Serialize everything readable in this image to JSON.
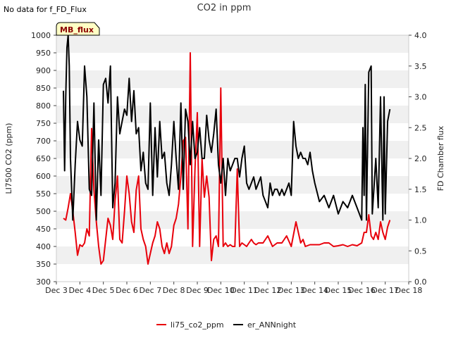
{
  "note": "No data for f_FD_Flux",
  "badge": "MB_flux",
  "chart_data": {
    "type": "line",
    "title": "CO2 in ppm",
    "ylabel": "LI7500 CO2 (ppm)",
    "y2label": "FD Chamber flux",
    "xlabel": "",
    "xlim": [
      3.0,
      18.0
    ],
    "ylim": [
      300,
      1000
    ],
    "y2lim": [
      0.0,
      4.0
    ],
    "x_ticks": [
      3,
      4,
      5,
      6,
      7,
      8,
      9,
      10,
      11,
      12,
      13,
      14,
      15,
      16,
      17,
      18
    ],
    "x_tick_labels": [
      "Dec 3",
      "Dec 4",
      "Dec 5",
      "Dec 6",
      "Dec 7",
      "Dec 8",
      "Dec 9",
      "Dec 10",
      "Dec 11",
      "Dec 12",
      "Dec 13",
      "Dec 14",
      "Dec 15",
      "Dec 16",
      "Dec 17",
      "Dec 18"
    ],
    "y_ticks": [
      300,
      350,
      400,
      450,
      500,
      550,
      600,
      650,
      700,
      750,
      800,
      850,
      900,
      950,
      1000
    ],
    "y2_ticks": [
      0.0,
      0.5,
      1.0,
      1.5,
      2.0,
      2.5,
      3.0,
      3.5,
      4.0
    ],
    "y2_tick_labels": [
      "0.0",
      "0.5",
      "1.0",
      "1.5",
      "2.0",
      "2.5",
      "3.0",
      "3.5",
      "4.0"
    ],
    "grid": "horizontal bands",
    "legend_position": "bottom-center",
    "series": [
      {
        "name": "li75_co2_ppm",
        "axis": "left",
        "color": "#e8000b",
        "x": [
          3.3,
          3.4,
          3.5,
          3.6,
          3.7,
          3.8,
          3.9,
          4.0,
          4.1,
          4.2,
          4.3,
          4.4,
          4.5,
          4.6,
          4.7,
          4.8,
          4.9,
          5.0,
          5.1,
          5.2,
          5.3,
          5.4,
          5.5,
          5.6,
          5.7,
          5.8,
          5.9,
          6.0,
          6.1,
          6.2,
          6.3,
          6.4,
          6.5,
          6.6,
          6.7,
          6.8,
          6.9,
          7.0,
          7.1,
          7.2,
          7.3,
          7.4,
          7.5,
          7.6,
          7.7,
          7.8,
          7.9,
          8.0,
          8.1,
          8.2,
          8.3,
          8.4,
          8.5,
          8.6,
          8.7,
          8.8,
          8.9,
          9.0,
          9.1,
          9.2,
          9.3,
          9.4,
          9.5,
          9.6,
          9.7,
          9.8,
          9.9,
          10.0,
          10.1,
          10.2,
          10.3,
          10.4,
          10.5,
          10.6,
          10.7,
          10.8,
          10.9,
          11.0,
          11.1,
          11.2,
          11.3,
          11.4,
          11.5,
          11.6,
          11.8,
          12.0,
          12.2,
          12.4,
          12.6,
          12.8,
          13.0,
          13.2,
          13.4,
          13.5,
          13.6,
          13.8,
          14.0,
          14.2,
          14.4,
          14.6,
          14.8,
          15.0,
          15.2,
          15.4,
          15.6,
          15.8,
          16.0,
          16.1,
          16.2,
          16.3,
          16.4,
          16.5,
          16.6,
          16.7,
          16.8,
          16.9,
          17.0,
          17.1,
          17.2
        ],
        "values": [
          480,
          475,
          510,
          550,
          500,
          440,
          375,
          405,
          400,
          410,
          450,
          430,
          735,
          560,
          470,
          400,
          350,
          360,
          420,
          480,
          460,
          420,
          530,
          600,
          420,
          410,
          500,
          600,
          550,
          470,
          440,
          560,
          600,
          450,
          420,
          400,
          350,
          380,
          410,
          430,
          470,
          450,
          400,
          380,
          410,
          380,
          400,
          460,
          480,
          520,
          600,
          700,
          710,
          450,
          950,
          400,
          620,
          780,
          400,
          650,
          540,
          600,
          540,
          360,
          420,
          430,
          400,
          850,
          400,
          410,
          400,
          405,
          400,
          400,
          620,
          400,
          410,
          405,
          400,
          410,
          420,
          410,
          405,
          410,
          410,
          430,
          400,
          410,
          410,
          430,
          400,
          470,
          410,
          420,
          400,
          405,
          405,
          405,
          410,
          410,
          400,
          402,
          405,
          400,
          405,
          402,
          410,
          440,
          440,
          490,
          430,
          420,
          440,
          420,
          470,
          440,
          420,
          455,
          475
        ]
      },
      {
        "name": "er_ANNnight",
        "axis": "right",
        "color": "#000000",
        "x": [
          3.3,
          3.35,
          3.4,
          3.45,
          3.5,
          3.55,
          3.6,
          3.7,
          3.8,
          3.9,
          4.0,
          4.1,
          4.2,
          4.3,
          4.4,
          4.5,
          4.6,
          4.7,
          4.8,
          4.9,
          5.0,
          5.1,
          5.2,
          5.3,
          5.4,
          5.5,
          5.6,
          5.7,
          5.8,
          5.9,
          6.0,
          6.1,
          6.2,
          6.3,
          6.4,
          6.5,
          6.6,
          6.7,
          6.8,
          6.9,
          7.0,
          7.1,
          7.2,
          7.3,
          7.4,
          7.5,
          7.6,
          7.7,
          7.8,
          7.9,
          8.0,
          8.1,
          8.2,
          8.3,
          8.4,
          8.5,
          8.6,
          8.7,
          8.8,
          8.9,
          9.0,
          9.1,
          9.2,
          9.3,
          9.4,
          9.5,
          9.6,
          9.7,
          9.8,
          9.9,
          10.0,
          10.1,
          10.2,
          10.3,
          10.4,
          10.5,
          10.6,
          10.7,
          10.8,
          10.9,
          11.0,
          11.1,
          11.2,
          11.3,
          11.4,
          11.5,
          11.6,
          11.7,
          11.8,
          11.9,
          12.0,
          12.1,
          12.2,
          12.3,
          12.4,
          12.5,
          12.6,
          12.7,
          12.8,
          12.9,
          13.0,
          13.1,
          13.2,
          13.3,
          13.4,
          13.5,
          13.6,
          13.7,
          13.8,
          13.9,
          14.0,
          14.2,
          14.4,
          14.6,
          14.8,
          15.0,
          15.2,
          15.4,
          15.6,
          15.8,
          16.0,
          16.05,
          16.1,
          16.15,
          16.2,
          16.3,
          16.4,
          16.45,
          16.5,
          16.6,
          16.7,
          16.8,
          16.9,
          16.95,
          17.0,
          17.1,
          17.2
        ],
        "values": [
          3.1,
          1.8,
          3.0,
          3.8,
          4.0,
          3.5,
          2.0,
          1.0,
          1.9,
          2.6,
          2.3,
          2.2,
          3.5,
          3.0,
          1.5,
          1.4,
          2.9,
          1.0,
          2.3,
          1.4,
          3.2,
          3.3,
          2.9,
          3.5,
          1.2,
          1.6,
          3.0,
          2.4,
          2.6,
          2.8,
          2.7,
          3.3,
          2.6,
          3.1,
          2.4,
          2.5,
          1.8,
          2.1,
          1.6,
          1.5,
          2.9,
          1.4,
          2.5,
          1.7,
          2.6,
          2.0,
          2.1,
          1.6,
          1.4,
          1.9,
          2.6,
          2.0,
          1.5,
          2.9,
          1.5,
          2.8,
          2.6,
          1.9,
          2.6,
          2.0,
          2.1,
          2.5,
          2.0,
          2.0,
          2.7,
          2.3,
          2.1,
          2.4,
          2.8,
          1.9,
          1.6,
          2.0,
          1.4,
          2.0,
          1.8,
          1.9,
          2.0,
          2.0,
          1.7,
          2.0,
          2.2,
          1.6,
          1.5,
          1.6,
          1.7,
          1.5,
          1.6,
          1.7,
          1.4,
          1.3,
          1.2,
          1.6,
          1.4,
          1.5,
          1.5,
          1.4,
          1.5,
          1.4,
          1.5,
          1.6,
          1.4,
          2.6,
          2.2,
          2.0,
          2.1,
          2.0,
          2.0,
          1.9,
          2.1,
          1.8,
          1.6,
          1.3,
          1.4,
          1.2,
          1.4,
          1.1,
          1.3,
          1.2,
          1.4,
          1.2,
          1.0,
          2.5,
          1.4,
          3.2,
          1.0,
          3.4,
          3.5,
          1.1,
          1.4,
          2.0,
          1.2,
          3.0,
          1.0,
          3.0,
          1.1,
          2.6,
          2.8
        ]
      }
    ]
  }
}
